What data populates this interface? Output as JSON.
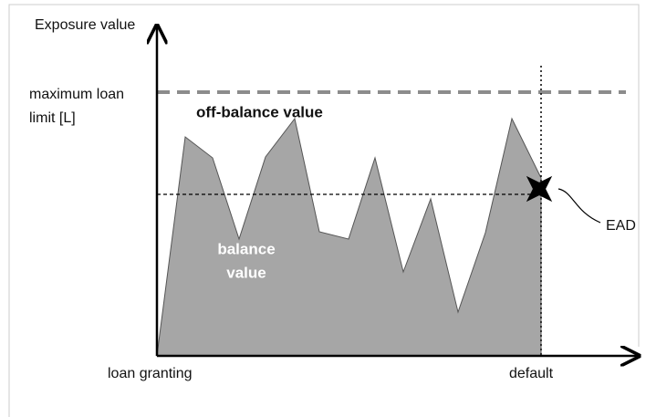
{
  "axes": {
    "y_label": "Exposure value",
    "x_start": "loan granting",
    "x_end": "default"
  },
  "labels": {
    "limit": [
      "maximum loan",
      "limit [L]"
    ],
    "off_balance": "off-balance value",
    "balance": [
      "balance",
      "value"
    ],
    "ead": "EAD"
  }
}
